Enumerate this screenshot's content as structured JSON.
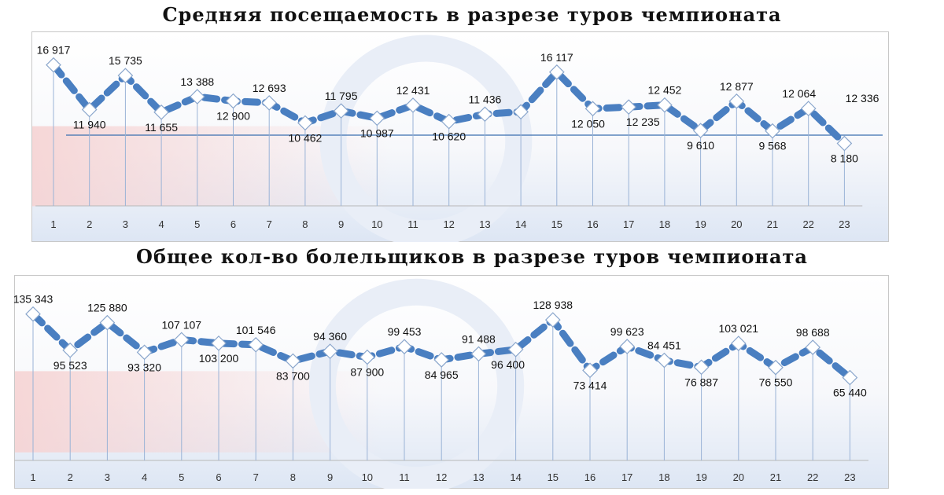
{
  "colors": {
    "line": "#4a7fc1",
    "baseline": "#3a6fb0",
    "drop": "#9ab3d6",
    "frame": "#c8c8c8",
    "bg_top": "#ffffff",
    "bg_red": "#f6d3d3",
    "bg_blue": "#dde6f4",
    "watermark": "#e9eef7"
  },
  "chart_data": [
    {
      "type": "line",
      "title": "Средняя посещаемость в разрезе туров чемпионата",
      "categories": [
        "1",
        "2",
        "3",
        "4",
        "5",
        "6",
        "7",
        "8",
        "9",
        "10",
        "11",
        "12",
        "13",
        "14",
        "15",
        "16",
        "17",
        "18",
        "19",
        "20",
        "21",
        "22",
        "23"
      ],
      "series": [
        {
          "values": [
            16917,
            11940,
            15735,
            11655,
            13388,
            12900,
            12693,
            10462,
            11795,
            10987,
            12431,
            10620,
            11436,
            11700,
            16117,
            12050,
            12235,
            12452,
            9610,
            12877,
            9568,
            12064,
            8180
          ],
          "labels": [
            "16 917",
            "11 940",
            "15 735",
            "11 655",
            "13 388",
            "12 900",
            "12 693",
            "10 462",
            "11 795",
            "10 987",
            "12 431",
            "10 620",
            "11 436",
            "",
            "16 117",
            "12 050",
            "12 235",
            "12 452",
            "9 610",
            "12 877",
            "9 568",
            "12 064",
            "8 180"
          ]
        }
      ],
      "extra_labels": [
        "12 336"
      ],
      "reference_line": 9100,
      "ylim": [
        7000,
        17500
      ],
      "grid": false,
      "legend": "none"
    },
    {
      "type": "line",
      "title": "Общее кол-во болельщиков в разрезе туров чемпионата",
      "categories": [
        "1",
        "2",
        "3",
        "4",
        "5",
        "6",
        "7",
        "8",
        "9",
        "10",
        "11",
        "12",
        "13",
        "14",
        "15",
        "16",
        "17",
        "18",
        "19",
        "20",
        "21",
        "22",
        "23"
      ],
      "series": [
        {
          "values": [
            135343,
            95523,
            125880,
            93320,
            107107,
            103200,
            101546,
            83700,
            94360,
            87900,
            99453,
            84965,
            91488,
            96400,
            128938,
            73414,
            99623,
            84451,
            76887,
            103021,
            76550,
            98688,
            65440
          ],
          "labels": [
            "135 343",
            "95 523",
            "125 880",
            "93 320",
            "107 107",
            "103 200",
            "101 546",
            "83 700",
            "94 360",
            "87 900",
            "99 453",
            "84 965",
            "91 488",
            "96 400",
            "128 938",
            "73 414",
            "99 623",
            "84 451",
            "76 887",
            "103 021",
            "76 550",
            "98 688",
            "65 440"
          ]
        }
      ],
      "ylim": [
        40000,
        142000
      ],
      "grid": false,
      "legend": "none"
    }
  ]
}
